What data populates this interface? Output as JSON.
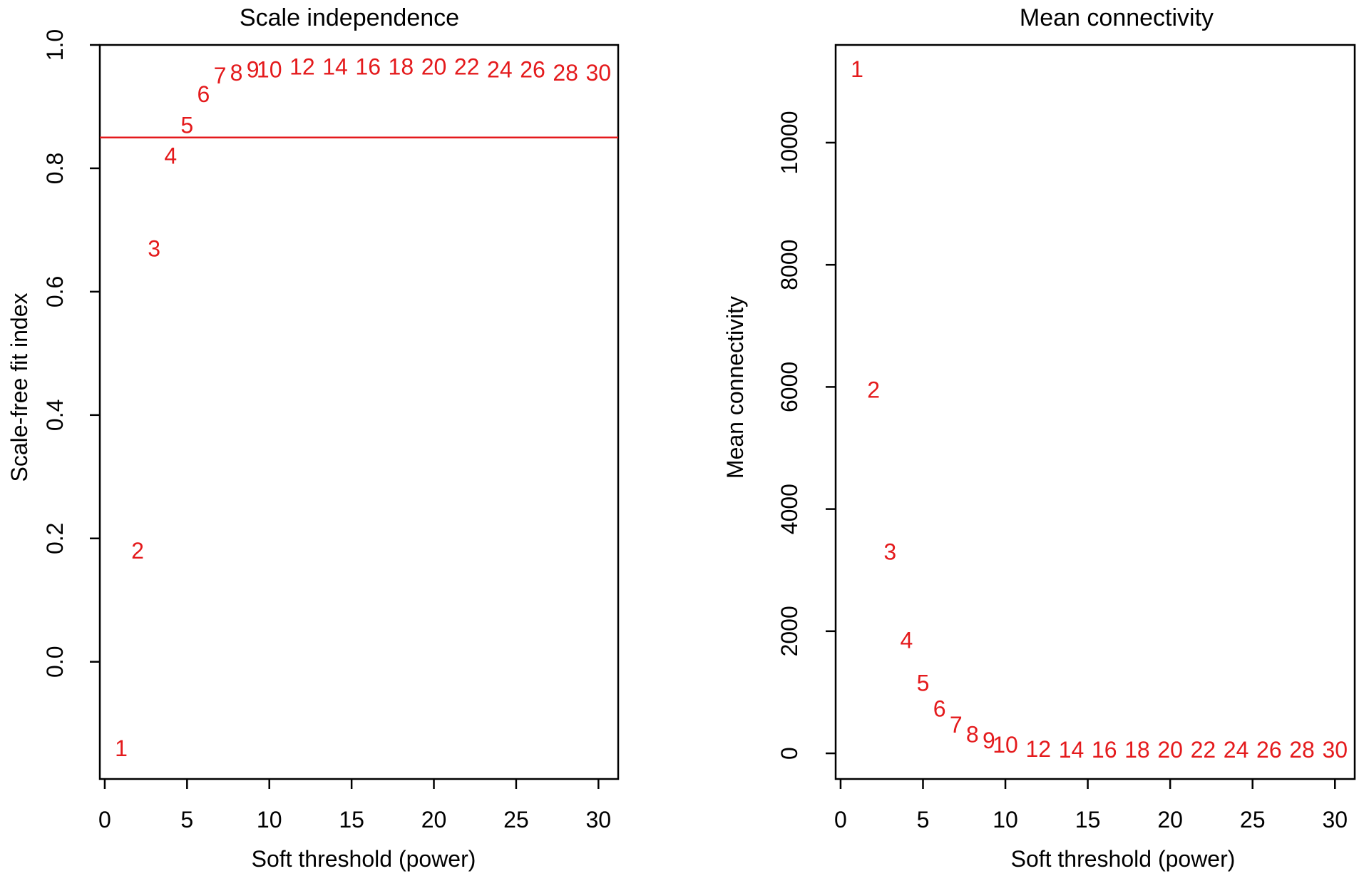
{
  "chart_data": [
    {
      "type": "scatter",
      "title": "Scale independence",
      "xlabel": "Soft threshold (power)",
      "ylabel": "Scale-free fit index",
      "xlim": [
        -0.3,
        31.2
      ],
      "ylim": [
        -0.19,
        1.0
      ],
      "xticks": [
        0,
        5,
        10,
        15,
        20,
        25,
        30
      ],
      "yticks": [
        0.0,
        0.2,
        0.4,
        0.6,
        0.8,
        1.0
      ],
      "ytick_labels": [
        "0.0",
        "0.2",
        "0.4",
        "0.6",
        "0.8",
        "1.0"
      ],
      "hline": 0.85,
      "point_color": "#e41a1c",
      "points": [
        {
          "x": 1,
          "y": -0.14,
          "label": "1"
        },
        {
          "x": 2,
          "y": 0.18,
          "label": "2"
        },
        {
          "x": 3,
          "y": 0.67,
          "label": "3"
        },
        {
          "x": 4,
          "y": 0.82,
          "label": "4"
        },
        {
          "x": 5,
          "y": 0.87,
          "label": "5"
        },
        {
          "x": 6,
          "y": 0.92,
          "label": "6"
        },
        {
          "x": 7,
          "y": 0.95,
          "label": "7"
        },
        {
          "x": 8,
          "y": 0.955,
          "label": "8"
        },
        {
          "x": 9,
          "y": 0.96,
          "label": "9"
        },
        {
          "x": 10,
          "y": 0.96,
          "label": "10"
        },
        {
          "x": 12,
          "y": 0.965,
          "label": "12"
        },
        {
          "x": 14,
          "y": 0.965,
          "label": "14"
        },
        {
          "x": 16,
          "y": 0.965,
          "label": "16"
        },
        {
          "x": 18,
          "y": 0.965,
          "label": "18"
        },
        {
          "x": 20,
          "y": 0.965,
          "label": "20"
        },
        {
          "x": 22,
          "y": 0.965,
          "label": "22"
        },
        {
          "x": 24,
          "y": 0.96,
          "label": "24"
        },
        {
          "x": 26,
          "y": 0.96,
          "label": "26"
        },
        {
          "x": 28,
          "y": 0.955,
          "label": "28"
        },
        {
          "x": 30,
          "y": 0.955,
          "label": "30"
        }
      ]
    },
    {
      "type": "scatter",
      "title": "Mean connectivity",
      "xlabel": "Soft threshold (power)",
      "ylabel": "Mean connectivity",
      "xlim": [
        -0.3,
        31.2
      ],
      "ylim": [
        -420,
        11600
      ],
      "xticks": [
        0,
        5,
        10,
        15,
        20,
        25,
        30
      ],
      "yticks": [
        0,
        2000,
        4000,
        6000,
        8000,
        10000
      ],
      "ytick_labels": [
        "0",
        "2000",
        "4000",
        "6000",
        "8000",
        "10000"
      ],
      "point_color": "#e41a1c",
      "points": [
        {
          "x": 1,
          "y": 11200,
          "label": "1"
        },
        {
          "x": 2,
          "y": 5950,
          "label": "2"
        },
        {
          "x": 3,
          "y": 3300,
          "label": "3"
        },
        {
          "x": 4,
          "y": 1850,
          "label": "4"
        },
        {
          "x": 5,
          "y": 1150,
          "label": "5"
        },
        {
          "x": 6,
          "y": 730,
          "label": "6"
        },
        {
          "x": 7,
          "y": 470,
          "label": "7"
        },
        {
          "x": 8,
          "y": 310,
          "label": "8"
        },
        {
          "x": 9,
          "y": 210,
          "label": "9"
        },
        {
          "x": 10,
          "y": 140,
          "label": "10"
        },
        {
          "x": 12,
          "y": 70,
          "label": "12"
        },
        {
          "x": 14,
          "y": 60,
          "label": "14"
        },
        {
          "x": 16,
          "y": 60,
          "label": "16"
        },
        {
          "x": 18,
          "y": 60,
          "label": "18"
        },
        {
          "x": 20,
          "y": 60,
          "label": "20"
        },
        {
          "x": 22,
          "y": 60,
          "label": "22"
        },
        {
          "x": 24,
          "y": 60,
          "label": "24"
        },
        {
          "x": 26,
          "y": 60,
          "label": "26"
        },
        {
          "x": 28,
          "y": 60,
          "label": "28"
        },
        {
          "x": 30,
          "y": 60,
          "label": "30"
        }
      ]
    }
  ]
}
